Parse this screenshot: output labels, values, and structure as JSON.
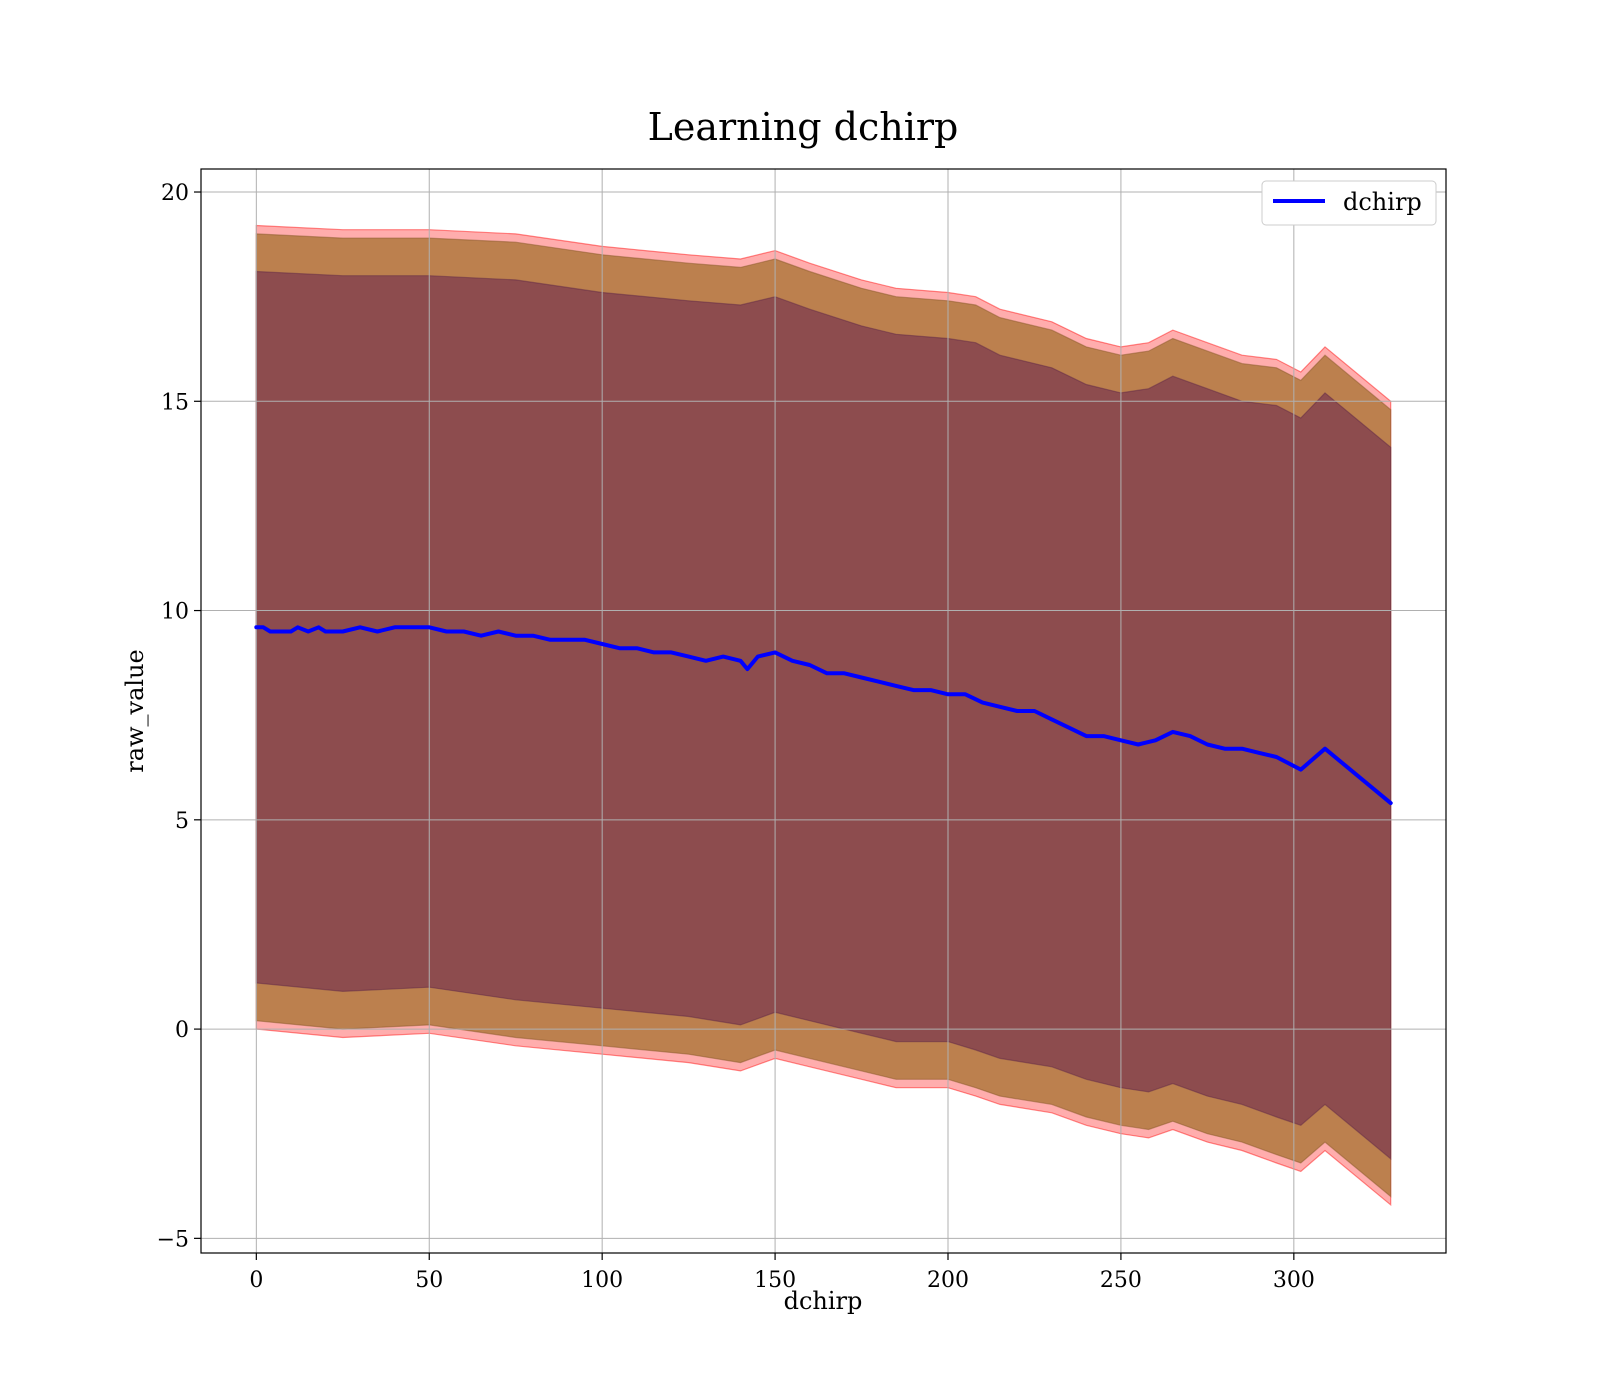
{
  "chart_data": {
    "type": "line",
    "title": "Learning dchirp",
    "xlabel": "dchirp",
    "ylabel": "raw_value",
    "xlim": [
      -16,
      344
    ],
    "ylim": [
      -5.35,
      20.55
    ],
    "xticks": [
      0,
      50,
      100,
      150,
      200,
      250,
      300
    ],
    "yticks": [
      -5,
      0,
      5,
      10,
      15,
      20
    ],
    "xtick_labels": [
      "0",
      "50",
      "100",
      "150",
      "200",
      "250",
      "300"
    ],
    "ytick_labels": [
      "−5",
      "0",
      "5",
      "10",
      "15",
      "20"
    ],
    "grid": true,
    "legend_placement": "upper right",
    "colors": {
      "line": "#0000ff",
      "band_outer": "#ff0000",
      "band_middle": "#a5722f",
      "band_inner": "#6e2a4e",
      "grid": "#b0b0b0"
    },
    "series": [
      {
        "name": "dchirp",
        "x": [
          0,
          2,
          4,
          6,
          8,
          10,
          12,
          15,
          18,
          20,
          25,
          30,
          35,
          40,
          45,
          50,
          55,
          60,
          65,
          70,
          75,
          80,
          85,
          90,
          95,
          100,
          105,
          110,
          115,
          120,
          125,
          130,
          135,
          140,
          142,
          145,
          150,
          155,
          160,
          165,
          170,
          175,
          180,
          185,
          190,
          195,
          200,
          205,
          210,
          215,
          220,
          225,
          230,
          235,
          240,
          245,
          250,
          255,
          260,
          265,
          270,
          275,
          280,
          285,
          290,
          295,
          302,
          309,
          328
        ],
        "y": [
          9.6,
          9.6,
          9.5,
          9.5,
          9.5,
          9.5,
          9.6,
          9.5,
          9.6,
          9.5,
          9.5,
          9.6,
          9.5,
          9.6,
          9.6,
          9.6,
          9.5,
          9.5,
          9.4,
          9.5,
          9.4,
          9.4,
          9.3,
          9.3,
          9.3,
          9.2,
          9.1,
          9.1,
          9.0,
          9.0,
          8.9,
          8.8,
          8.9,
          8.8,
          8.6,
          8.9,
          9.0,
          8.8,
          8.7,
          8.5,
          8.5,
          8.4,
          8.3,
          8.2,
          8.1,
          8.1,
          8.0,
          8.0,
          7.8,
          7.7,
          7.6,
          7.6,
          7.4,
          7.2,
          7.0,
          7.0,
          6.9,
          6.8,
          6.9,
          7.1,
          7.0,
          6.8,
          6.7,
          6.7,
          6.6,
          6.5,
          6.2,
          6.7,
          5.4
        ]
      }
    ],
    "bands": [
      {
        "label_role": "outer band (red)",
        "x": [
          0,
          25,
          50,
          75,
          100,
          125,
          140,
          150,
          160,
          175,
          185,
          200,
          208,
          215,
          230,
          240,
          250,
          258,
          265,
          275,
          285,
          295,
          302,
          309,
          328
        ],
        "upper": [
          19.2,
          19.1,
          19.1,
          19.0,
          18.7,
          18.5,
          18.4,
          18.6,
          18.3,
          17.9,
          17.7,
          17.6,
          17.5,
          17.2,
          16.9,
          16.5,
          16.3,
          16.4,
          16.7,
          16.4,
          16.1,
          16.0,
          15.7,
          16.3,
          15.0
        ],
        "lower": [
          0.0,
          -0.2,
          -0.1,
          -0.4,
          -0.6,
          -0.8,
          -1.0,
          -0.7,
          -0.9,
          -1.2,
          -1.4,
          -1.4,
          -1.6,
          -1.8,
          -2.0,
          -2.3,
          -2.5,
          -2.6,
          -2.4,
          -2.7,
          -2.9,
          -3.2,
          -3.4,
          -2.9,
          -4.2
        ]
      },
      {
        "label_role": "middle band (orange-brown)",
        "x": [
          0,
          25,
          50,
          75,
          100,
          125,
          140,
          150,
          160,
          175,
          185,
          200,
          208,
          215,
          230,
          240,
          250,
          258,
          265,
          275,
          285,
          295,
          302,
          309,
          328
        ],
        "upper": [
          19.0,
          18.9,
          18.9,
          18.8,
          18.5,
          18.3,
          18.2,
          18.4,
          18.1,
          17.7,
          17.5,
          17.4,
          17.3,
          17.0,
          16.7,
          16.3,
          16.1,
          16.2,
          16.5,
          16.2,
          15.9,
          15.8,
          15.5,
          16.1,
          14.8
        ],
        "lower": [
          0.2,
          0.0,
          0.1,
          -0.2,
          -0.4,
          -0.6,
          -0.8,
          -0.5,
          -0.7,
          -1.0,
          -1.2,
          -1.2,
          -1.4,
          -1.6,
          -1.8,
          -2.1,
          -2.3,
          -2.4,
          -2.2,
          -2.5,
          -2.7,
          -3.0,
          -3.2,
          -2.7,
          -4.0
        ]
      },
      {
        "label_role": "inner band (dark mauve)",
        "x": [
          0,
          25,
          50,
          75,
          100,
          125,
          140,
          150,
          160,
          175,
          185,
          200,
          208,
          215,
          230,
          240,
          250,
          258,
          265,
          275,
          285,
          295,
          302,
          309,
          328
        ],
        "upper": [
          18.1,
          18.0,
          18.0,
          17.9,
          17.6,
          17.4,
          17.3,
          17.5,
          17.2,
          16.8,
          16.6,
          16.5,
          16.4,
          16.1,
          15.8,
          15.4,
          15.2,
          15.3,
          15.6,
          15.3,
          15.0,
          14.9,
          14.6,
          15.2,
          13.9
        ],
        "lower": [
          1.1,
          0.9,
          1.0,
          0.7,
          0.5,
          0.3,
          0.1,
          0.4,
          0.2,
          -0.1,
          -0.3,
          -0.3,
          -0.5,
          -0.7,
          -0.9,
          -1.2,
          -1.4,
          -1.5,
          -1.3,
          -1.6,
          -1.8,
          -2.1,
          -2.3,
          -1.8,
          -3.1
        ]
      }
    ]
  }
}
